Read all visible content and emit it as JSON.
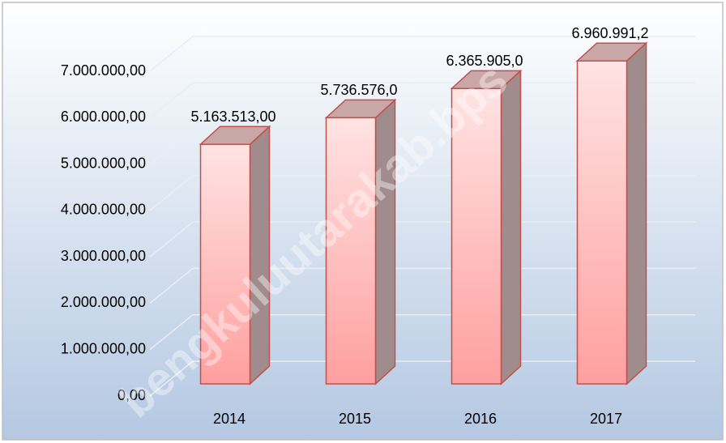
{
  "chart_data": {
    "type": "bar",
    "categories": [
      "2014",
      "2015",
      "2016",
      "2017"
    ],
    "values": [
      5163513,
      5736576,
      6365905,
      6960991.2
    ],
    "value_labels": [
      "5.163.513,00",
      "5.736.576,0",
      "6.365.905,0",
      "6.960.991,2"
    ],
    "color": "#ffb3b3",
    "ylim": [
      0,
      7000000
    ],
    "yticks": [
      {
        "value": 0,
        "label": "0,00"
      },
      {
        "value": 1000000,
        "label": "1.000.000,00"
      },
      {
        "value": 2000000,
        "label": "2.000.000,00"
      },
      {
        "value": 3000000,
        "label": "3.000.000,00"
      },
      {
        "value": 4000000,
        "label": "4.000.000,00"
      },
      {
        "value": 5000000,
        "label": "5.000.000,00"
      },
      {
        "value": 6000000,
        "label": "6.000.000,00"
      },
      {
        "value": 7000000,
        "label": "7.000.000,00"
      }
    ],
    "grid": true,
    "watermark": "bengkuluutarakab.bps"
  }
}
